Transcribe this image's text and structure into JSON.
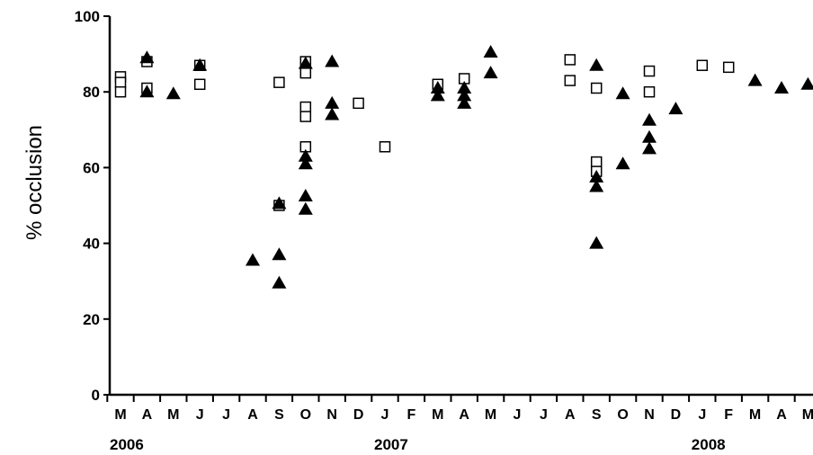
{
  "chart_data": {
    "type": "scatter",
    "title": "",
    "ylabel": "% occlusion",
    "xlabel": "",
    "ylim": [
      0,
      100
    ],
    "yticks": [
      0,
      20,
      40,
      60,
      80,
      100
    ],
    "x_unit": "month index (0 = March 2006)",
    "month_labels": [
      "M",
      "A",
      "M",
      "J",
      "J",
      "A",
      "S",
      "O",
      "N",
      "D",
      "J",
      "F",
      "M",
      "A",
      "M",
      "J",
      "J",
      "A",
      "S",
      "O",
      "N",
      "D",
      "J",
      "F",
      "M",
      "A",
      "M"
    ],
    "years": [
      {
        "label": "2006",
        "month_index": 0
      },
      {
        "label": "2007",
        "month_index": 10
      },
      {
        "label": "2008",
        "month_index": 22
      }
    ],
    "grid": false,
    "series": [
      {
        "marker": "open-square",
        "points": [
          {
            "x": 0,
            "y": 84
          },
          {
            "x": 0,
            "y": 82.5
          },
          {
            "x": 0,
            "y": 80
          },
          {
            "x": 1,
            "y": 88
          },
          {
            "x": 1,
            "y": 81
          },
          {
            "x": 3,
            "y": 87
          },
          {
            "x": 3,
            "y": 82
          },
          {
            "x": 6,
            "y": 82.5
          },
          {
            "x": 6,
            "y": 50
          },
          {
            "x": 7,
            "y": 88
          },
          {
            "x": 7,
            "y": 85
          },
          {
            "x": 7,
            "y": 76
          },
          {
            "x": 7,
            "y": 73.5
          },
          {
            "x": 7,
            "y": 65.5
          },
          {
            "x": 9,
            "y": 77
          },
          {
            "x": 10,
            "y": 65.5
          },
          {
            "x": 12,
            "y": 82
          },
          {
            "x": 13,
            "y": 83.5
          },
          {
            "x": 17,
            "y": 88.5
          },
          {
            "x": 17,
            "y": 83
          },
          {
            "x": 18,
            "y": 81
          },
          {
            "x": 18,
            "y": 61.5
          },
          {
            "x": 18,
            "y": 59
          },
          {
            "x": 20,
            "y": 85.5
          },
          {
            "x": 20,
            "y": 80
          },
          {
            "x": 22,
            "y": 87
          },
          {
            "x": 23,
            "y": 86.5
          }
        ]
      },
      {
        "marker": "filled-triangle",
        "points": [
          {
            "x": 1,
            "y": 89
          },
          {
            "x": 1,
            "y": 80
          },
          {
            "x": 2,
            "y": 79.5
          },
          {
            "x": 3,
            "y": 87
          },
          {
            "x": 5,
            "y": 35.5
          },
          {
            "x": 6,
            "y": 50.5
          },
          {
            "x": 6,
            "y": 37
          },
          {
            "x": 6,
            "y": 29.5
          },
          {
            "x": 7,
            "y": 87.5
          },
          {
            "x": 7,
            "y": 63
          },
          {
            "x": 7,
            "y": 61
          },
          {
            "x": 7,
            "y": 52.5
          },
          {
            "x": 7,
            "y": 49
          },
          {
            "x": 8,
            "y": 88
          },
          {
            "x": 8,
            "y": 77
          },
          {
            "x": 8,
            "y": 74
          },
          {
            "x": 12,
            "y": 81
          },
          {
            "x": 12,
            "y": 79
          },
          {
            "x": 13,
            "y": 81
          },
          {
            "x": 13,
            "y": 79
          },
          {
            "x": 13,
            "y": 77
          },
          {
            "x": 14,
            "y": 90.5
          },
          {
            "x": 14,
            "y": 85
          },
          {
            "x": 18,
            "y": 87
          },
          {
            "x": 18,
            "y": 57.5
          },
          {
            "x": 18,
            "y": 55
          },
          {
            "x": 18,
            "y": 40
          },
          {
            "x": 19,
            "y": 79.5
          },
          {
            "x": 19,
            "y": 61
          },
          {
            "x": 20,
            "y": 72.5
          },
          {
            "x": 20,
            "y": 68
          },
          {
            "x": 20,
            "y": 65
          },
          {
            "x": 21,
            "y": 75.5
          },
          {
            "x": 24,
            "y": 83
          },
          {
            "x": 25,
            "y": 81
          },
          {
            "x": 26,
            "y": 82
          }
        ]
      }
    ]
  }
}
